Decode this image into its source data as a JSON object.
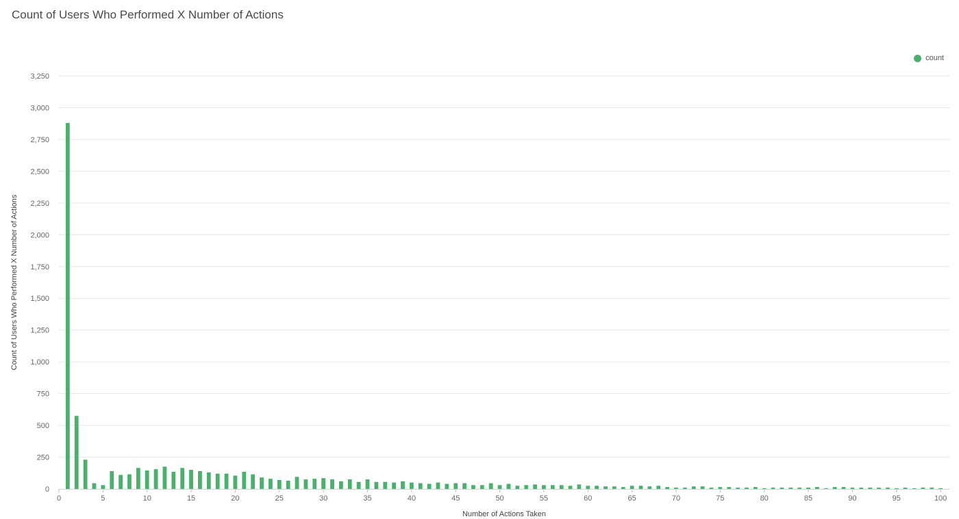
{
  "chart_data": {
    "type": "bar",
    "title": "Count of Users Who Performed X Number of Actions",
    "xlabel": "Number of Actions Taken",
    "ylabel": "Count of Users Who Performed X Number of Actions",
    "ylim": [
      0,
      3250
    ],
    "xlim": [
      0,
      101
    ],
    "y_ticks": [
      0,
      250,
      500,
      750,
      1000,
      1250,
      1500,
      1750,
      2000,
      2250,
      2500,
      2750,
      3000,
      3250
    ],
    "x_ticks": [
      0,
      5,
      10,
      15,
      20,
      25,
      30,
      35,
      40,
      45,
      50,
      55,
      60,
      65,
      70,
      75,
      80,
      85,
      90,
      95,
      100
    ],
    "grid": true,
    "legend_position": "top-right",
    "color": "#4caf6e",
    "series": [
      {
        "name": "count",
        "x": [
          1,
          2,
          3,
          4,
          5,
          6,
          7,
          8,
          9,
          10,
          11,
          12,
          13,
          14,
          15,
          16,
          17,
          18,
          19,
          20,
          21,
          22,
          23,
          24,
          25,
          26,
          27,
          28,
          29,
          30,
          31,
          32,
          33,
          34,
          35,
          36,
          37,
          38,
          39,
          40,
          41,
          42,
          43,
          44,
          45,
          46,
          47,
          48,
          49,
          50,
          51,
          52,
          53,
          54,
          55,
          56,
          57,
          58,
          59,
          60,
          61,
          62,
          63,
          64,
          65,
          66,
          67,
          68,
          69,
          70,
          71,
          72,
          73,
          74,
          75,
          76,
          77,
          78,
          79,
          80,
          81,
          82,
          83,
          84,
          85,
          86,
          87,
          88,
          89,
          90,
          91,
          92,
          93,
          94,
          95,
          96,
          97,
          98,
          99,
          100
        ],
        "values": [
          2880,
          575,
          230,
          45,
          30,
          140,
          110,
          115,
          165,
          145,
          155,
          175,
          135,
          165,
          150,
          140,
          130,
          120,
          120,
          105,
          135,
          115,
          90,
          80,
          70,
          65,
          95,
          75,
          80,
          85,
          75,
          60,
          75,
          55,
          75,
          55,
          55,
          50,
          60,
          50,
          45,
          40,
          50,
          40,
          45,
          45,
          30,
          30,
          45,
          30,
          40,
          25,
          30,
          35,
          30,
          30,
          30,
          25,
          35,
          25,
          25,
          20,
          20,
          15,
          25,
          25,
          20,
          25,
          15,
          10,
          10,
          20,
          20,
          10,
          15,
          15,
          10,
          10,
          15,
          5,
          10,
          10,
          10,
          10,
          10,
          15,
          5,
          15,
          15,
          10,
          10,
          10,
          10,
          10,
          5,
          10,
          5,
          10,
          10,
          5
        ]
      }
    ]
  }
}
